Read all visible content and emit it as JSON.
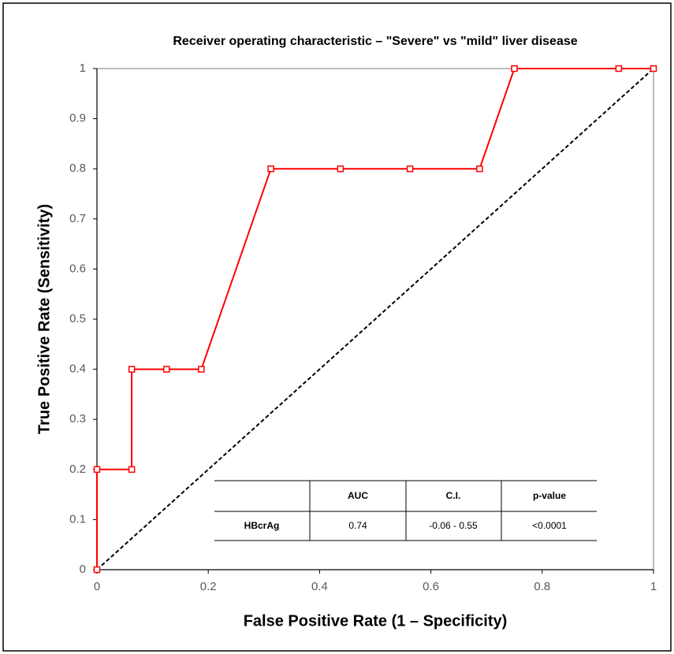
{
  "chart_data": {
    "type": "line",
    "title": "Receiver operating characteristic – \"Severe\" vs \"mild\" liver disease",
    "x_label": "False Positive Rate (1 – Specificity)",
    "y_label": "True Positive Rate (Sensitivity)",
    "x": [
      0,
      0,
      0.0625,
      0.0625,
      0.125,
      0.1875,
      0.3125,
      0.4375,
      0.5625,
      0.6875,
      0.75,
      0.9375,
      1
    ],
    "values": [
      0,
      0.2,
      0.2,
      0.4,
      0.4,
      0.4,
      0.8,
      0.8,
      0.8,
      0.8,
      1,
      1,
      1
    ],
    "color": "#ff0000",
    "xlim": [
      0,
      1
    ],
    "ylim": [
      0,
      1
    ],
    "xticks": [
      0,
      0.2,
      0.4,
      0.6,
      0.8,
      1
    ],
    "yticks": [
      0,
      0.1,
      0.2,
      0.3,
      0.4,
      0.5,
      0.6,
      0.7,
      0.8,
      0.9,
      1
    ],
    "table": {
      "columns": [
        "AUC",
        "C.I.",
        "p-value"
      ],
      "rows": [
        {
          "label": "HBcrAg",
          "cells": [
            "0.74",
            "-0.06 - 0.55",
            "<0.0001"
          ]
        }
      ]
    }
  }
}
